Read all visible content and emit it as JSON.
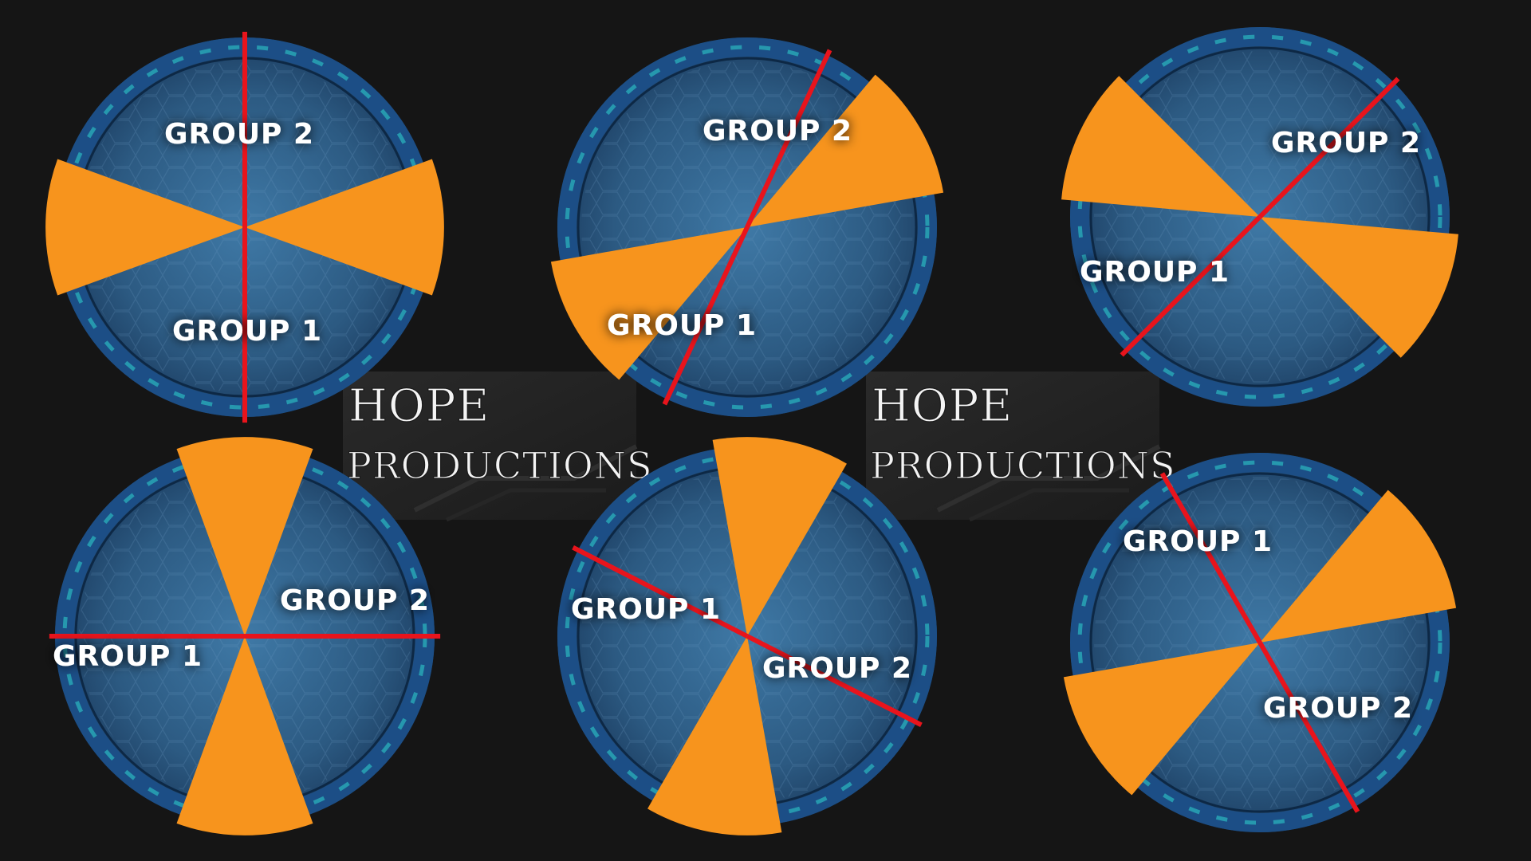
{
  "colors": {
    "background": "#151515",
    "wedge": "#f7941d",
    "divider": "#e8141c",
    "disc": "#2f5f87",
    "ring": "#1c4e86",
    "ring_glow": "#2fd6d0"
  },
  "banners": [
    {
      "line1": "HOPE",
      "line2": "PRODUCTIONS"
    },
    {
      "line1": "HOPE",
      "line2": "PRODUCTIONS"
    }
  ],
  "diagrams": [
    {
      "wedge_centers_deg": [
        90,
        270
      ],
      "wedge_width_deg": 40,
      "divider_angles_deg": [
        0,
        180
      ],
      "labels": [
        {
          "text": "GROUP 2"
        },
        {
          "text": "GROUP 1"
        }
      ]
    },
    {
      "wedge_centers_deg": [
        60,
        240
      ],
      "wedge_width_deg": 40,
      "divider_angles_deg": [
        25,
        205
      ],
      "labels": [
        {
          "text": "GROUP 2"
        },
        {
          "text": "GROUP 1"
        }
      ]
    },
    {
      "wedge_centers_deg": [
        115,
        295
      ],
      "wedge_width_deg": 40,
      "divider_angles_deg": [
        45,
        225
      ],
      "labels": [
        {
          "text": "GROUP 2"
        },
        {
          "text": "GROUP 1"
        }
      ]
    },
    {
      "wedge_centers_deg": [
        0,
        180
      ],
      "wedge_width_deg": 40,
      "divider_angles_deg": [
        90,
        270
      ],
      "labels": [
        {
          "text": "GROUP 2"
        },
        {
          "text": "GROUP 1"
        }
      ]
    },
    {
      "wedge_centers_deg": [
        10,
        190
      ],
      "wedge_width_deg": 40,
      "divider_angles_deg": [
        117,
        297
      ],
      "labels": [
        {
          "text": "GROUP 2"
        },
        {
          "text": "GROUP 1"
        }
      ]
    },
    {
      "wedge_centers_deg": [
        60,
        240
      ],
      "wedge_width_deg": 40,
      "divider_angles_deg": [
        150,
        330
      ],
      "labels": [
        {
          "text": "GROUP 2"
        },
        {
          "text": "GROUP 1"
        }
      ]
    }
  ]
}
